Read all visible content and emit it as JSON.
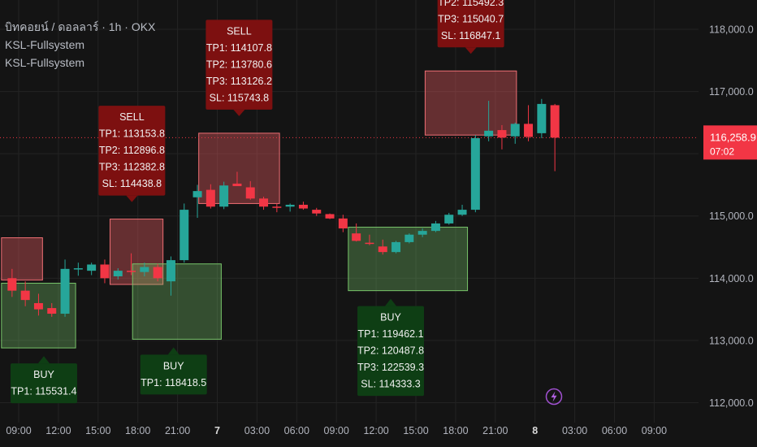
{
  "legend": {
    "symbol_line": "บิทคอยน์ / ดอลลาร์ · 1h · OKX",
    "indicator_1": "KSL-Fullsystem",
    "indicator_2": "KSL-Fullsystem"
  },
  "price_badge": {
    "price": "116,258.9",
    "countdown": "07:02"
  },
  "colors": {
    "background": "#141414",
    "up": "#26a69a",
    "down": "#f23645",
    "sell_box_fill": "rgba(233,91,98,0.38)",
    "sell_box_stroke": "#ee6e74",
    "buy_box_fill": "rgba(118,196,106,0.33)",
    "buy_box_stroke": "#78c56a",
    "sell_callout": "#7d1010",
    "buy_callout": "#0e3e14",
    "price_line": "#f23645"
  },
  "icons": {
    "alert": "lightning-bolt-icon"
  },
  "chart_data": {
    "type": "candlestick",
    "ylim": [
      111680,
      118470
    ],
    "y_ticks": [
      {
        "value": 112000,
        "label": "112,000.0"
      },
      {
        "value": 113000,
        "label": "113,000.0"
      },
      {
        "value": 114000,
        "label": "114,000.0"
      },
      {
        "value": 115000,
        "label": "115,000.0"
      },
      {
        "value": 117000,
        "label": "117,000.0"
      },
      {
        "value": 118000,
        "label": "118,000.0"
      }
    ],
    "x_ticks": [
      {
        "hours": 0,
        "label": "09:00",
        "bold": false
      },
      {
        "hours": 3,
        "label": "12:00",
        "bold": false
      },
      {
        "hours": 6,
        "label": "15:00",
        "bold": false
      },
      {
        "hours": 9,
        "label": "18:00",
        "bold": false
      },
      {
        "hours": 12,
        "label": "21:00",
        "bold": false
      },
      {
        "hours": 15,
        "label": "7",
        "bold": true
      },
      {
        "hours": 18,
        "label": "03:00",
        "bold": false
      },
      {
        "hours": 21,
        "label": "06:00",
        "bold": false
      },
      {
        "hours": 24,
        "label": "09:00",
        "bold": false
      },
      {
        "hours": 27,
        "label": "12:00",
        "bold": false
      },
      {
        "hours": 30,
        "label": "15:00",
        "bold": false
      },
      {
        "hours": 33,
        "label": "18:00",
        "bold": false
      },
      {
        "hours": 36,
        "label": "21:00",
        "bold": false
      },
      {
        "hours": 39,
        "label": "8",
        "bold": true
      },
      {
        "hours": 42,
        "label": "03:00",
        "bold": false
      },
      {
        "hours": 45,
        "label": "06:00",
        "bold": false
      },
      {
        "hours": 48,
        "label": "09:00",
        "bold": false
      }
    ],
    "current_price": 116258.9,
    "candles": [
      {
        "t": -0.5,
        "o": 114000,
        "h": 114150,
        "l": 113700,
        "c": 113800
      },
      {
        "t": 0.5,
        "o": 113800,
        "h": 113950,
        "l": 113550,
        "c": 113650
      },
      {
        "t": 1.5,
        "o": 113600,
        "h": 113750,
        "l": 113400,
        "c": 113500
      },
      {
        "t": 2.5,
        "o": 113520,
        "h": 113600,
        "l": 113380,
        "c": 113430
      },
      {
        "t": 3.5,
        "o": 113430,
        "h": 114300,
        "l": 113380,
        "c": 114150
      },
      {
        "t": 4.5,
        "o": 114150,
        "h": 114250,
        "l": 114040,
        "c": 114160
      },
      {
        "t": 5.5,
        "o": 114120,
        "h": 114250,
        "l": 114050,
        "c": 114220
      },
      {
        "t": 6.5,
        "o": 114220,
        "h": 114300,
        "l": 113920,
        "c": 114000
      },
      {
        "t": 7.5,
        "o": 114030,
        "h": 114160,
        "l": 113980,
        "c": 114120
      },
      {
        "t": 8.5,
        "o": 114120,
        "h": 114400,
        "l": 114050,
        "c": 114100
      },
      {
        "t": 9.5,
        "o": 114100,
        "h": 114250,
        "l": 114030,
        "c": 114180
      },
      {
        "t": 10.5,
        "o": 114180,
        "h": 114230,
        "l": 113950,
        "c": 114000
      },
      {
        "t": 11.5,
        "o": 113950,
        "h": 114350,
        "l": 113720,
        "c": 114290
      },
      {
        "t": 12.5,
        "o": 114290,
        "h": 115200,
        "l": 114250,
        "c": 115100
      },
      {
        "t": 13.5,
        "o": 115300,
        "h": 115500,
        "l": 114970,
        "c": 115400
      },
      {
        "t": 14.5,
        "o": 115420,
        "h": 115510,
        "l": 115120,
        "c": 115150
      },
      {
        "t": 15.5,
        "o": 115150,
        "h": 115550,
        "l": 115110,
        "c": 115490
      },
      {
        "t": 16.5,
        "o": 115520,
        "h": 115710,
        "l": 115480,
        "c": 115480
      },
      {
        "t": 17.5,
        "o": 115460,
        "h": 115560,
        "l": 115260,
        "c": 115280
      },
      {
        "t": 18.5,
        "o": 115280,
        "h": 115310,
        "l": 115100,
        "c": 115150
      },
      {
        "t": 19.5,
        "o": 115150,
        "h": 115200,
        "l": 115060,
        "c": 115140
      },
      {
        "t": 20.5,
        "o": 115150,
        "h": 115200,
        "l": 115070,
        "c": 115180
      },
      {
        "t": 21.5,
        "o": 115180,
        "h": 115230,
        "l": 115100,
        "c": 115120
      },
      {
        "t": 22.5,
        "o": 115100,
        "h": 115130,
        "l": 115000,
        "c": 115040
      },
      {
        "t": 23.5,
        "o": 115030,
        "h": 115040,
        "l": 114950,
        "c": 114960
      },
      {
        "t": 24.5,
        "o": 114960,
        "h": 115020,
        "l": 114740,
        "c": 114800
      },
      {
        "t": 25.5,
        "o": 114720,
        "h": 114880,
        "l": 114590,
        "c": 114600
      },
      {
        "t": 26.5,
        "o": 114570,
        "h": 114700,
        "l": 114530,
        "c": 114560
      },
      {
        "t": 27.5,
        "o": 114510,
        "h": 114620,
        "l": 114380,
        "c": 114420
      },
      {
        "t": 28.5,
        "o": 114420,
        "h": 114600,
        "l": 114400,
        "c": 114580
      },
      {
        "t": 29.5,
        "o": 114580,
        "h": 114720,
        "l": 114560,
        "c": 114700
      },
      {
        "t": 30.5,
        "o": 114700,
        "h": 114800,
        "l": 114660,
        "c": 114760
      },
      {
        "t": 31.5,
        "o": 114760,
        "h": 114920,
        "l": 114740,
        "c": 114880
      },
      {
        "t": 32.5,
        "o": 114880,
        "h": 115050,
        "l": 114860,
        "c": 115020
      },
      {
        "t": 33.5,
        "o": 115020,
        "h": 115180,
        "l": 115000,
        "c": 115100
      },
      {
        "t": 34.5,
        "o": 115100,
        "h": 116300,
        "l": 115060,
        "c": 116250
      },
      {
        "t": 35.5,
        "o": 116280,
        "h": 116850,
        "l": 116200,
        "c": 116370
      },
      {
        "t": 36.5,
        "o": 116380,
        "h": 116460,
        "l": 116070,
        "c": 116260
      },
      {
        "t": 37.5,
        "o": 116280,
        "h": 116500,
        "l": 116160,
        "c": 116480
      },
      {
        "t": 38.5,
        "o": 116480,
        "h": 116780,
        "l": 116200,
        "c": 116270
      },
      {
        "t": 39.5,
        "o": 116330,
        "h": 116880,
        "l": 116250,
        "c": 116800
      },
      {
        "t": 40.5,
        "o": 116780,
        "h": 116800,
        "l": 115720,
        "c": 116258.9
      }
    ],
    "zones": [
      {
        "kind": "sell",
        "t0": -1.3,
        "t1": 1.8,
        "top": 114650,
        "bottom": 113970
      },
      {
        "kind": "buy",
        "t0": -1.3,
        "t1": 4.3,
        "top": 113920,
        "bottom": 112880
      },
      {
        "kind": "sell",
        "t0": 6.9,
        "t1": 10.9,
        "top": 114950,
        "bottom": 113900
      },
      {
        "kind": "buy",
        "t0": 8.6,
        "t1": 15.3,
        "top": 114230,
        "bottom": 113020
      },
      {
        "kind": "sell",
        "t0": 13.6,
        "t1": 19.7,
        "top": 116330,
        "bottom": 115200
      },
      {
        "kind": "buy",
        "t0": 24.9,
        "t1": 33.9,
        "top": 114820,
        "bottom": 113800
      },
      {
        "kind": "sell",
        "t0": 30.7,
        "t1": 37.6,
        "top": 117330,
        "bottom": 116300
      }
    ],
    "annotations": [
      {
        "kind": "sell",
        "at": 8.55,
        "anchor_price": 114950,
        "lines": [
          "SELL",
          "TP1: 113153.8",
          "TP2: 112896.8",
          "TP3: 112382.8",
          "SL: 114438.8"
        ]
      },
      {
        "kind": "sell",
        "at": 16.65,
        "anchor_price": 116330,
        "lines": [
          "SELL",
          "TP1: 114107.8",
          "TP2: 113780.6",
          "TP3: 113126.2",
          "SL: 115743.8"
        ]
      },
      {
        "kind": "sell",
        "at": 34.15,
        "anchor_price": 117330,
        "lines": [
          "TP2: 115492.3",
          "TP3: 115040.7",
          "SL: 116847.1"
        ]
      },
      {
        "kind": "buy",
        "at": 1.9,
        "anchor_price": 112880,
        "lines": [
          "BUY",
          "TP1: 115531.4"
        ]
      },
      {
        "kind": "buy",
        "at": 11.7,
        "anchor_price": 113020,
        "lines": [
          "BUY",
          "TP1: 118418.5"
        ]
      },
      {
        "kind": "buy",
        "at": 28.1,
        "anchor_price": 113800,
        "lines": [
          "BUY",
          "TP1: 119462.1",
          "TP2: 120487.8",
          "TP3: 122539.3",
          "SL: 114333.3"
        ]
      }
    ]
  }
}
